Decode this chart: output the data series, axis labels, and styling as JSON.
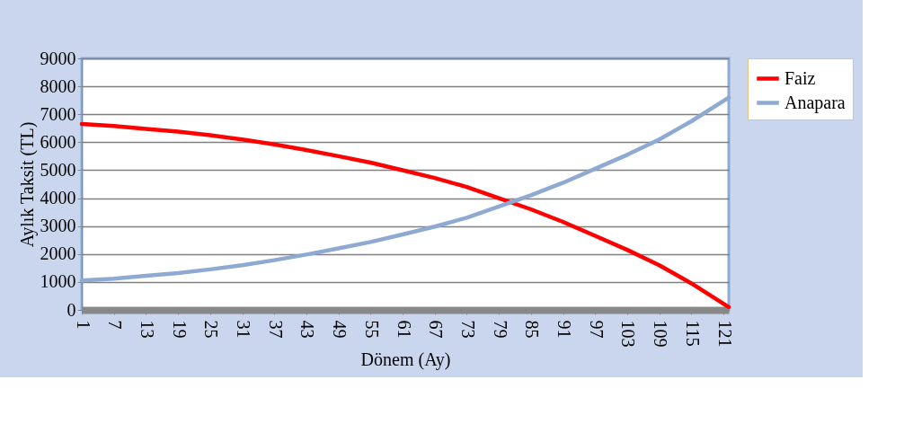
{
  "chart_data": {
    "type": "line",
    "xlabel": "Dönem (Ay)",
    "ylabel": "Aylık Taksit  (TL)",
    "x": [
      1,
      7,
      13,
      19,
      25,
      31,
      37,
      43,
      49,
      55,
      61,
      67,
      73,
      79,
      85,
      91,
      97,
      103,
      109,
      115,
      122
    ],
    "series": [
      {
        "name": "Faiz",
        "color": "#ff0000",
        "values": [
          6650,
          6580,
          6480,
          6380,
          6250,
          6100,
          5920,
          5720,
          5500,
          5270,
          5000,
          4720,
          4400,
          4000,
          3600,
          3150,
          2650,
          2150,
          1600,
          950,
          100
        ]
      },
      {
        "name": "Anapara",
        "color": "#8faad2",
        "values": [
          1050,
          1120,
          1220,
          1320,
          1450,
          1600,
          1780,
          1980,
          2200,
          2430,
          2700,
          2980,
          3300,
          3700,
          4100,
          4550,
          5050,
          5550,
          6100,
          6750,
          7600
        ]
      }
    ],
    "xlim": [
      1,
      122
    ],
    "xticks": [
      1,
      7,
      13,
      19,
      25,
      31,
      37,
      43,
      49,
      55,
      61,
      67,
      73,
      79,
      85,
      91,
      97,
      103,
      109,
      115,
      121
    ],
    "ylim": [
      0,
      9000
    ],
    "yticks": [
      0,
      1000,
      2000,
      3000,
      4000,
      5000,
      6000,
      7000,
      8000,
      9000
    ],
    "grid": "y",
    "legend": "right",
    "marker": "none",
    "line_style": "solid"
  }
}
